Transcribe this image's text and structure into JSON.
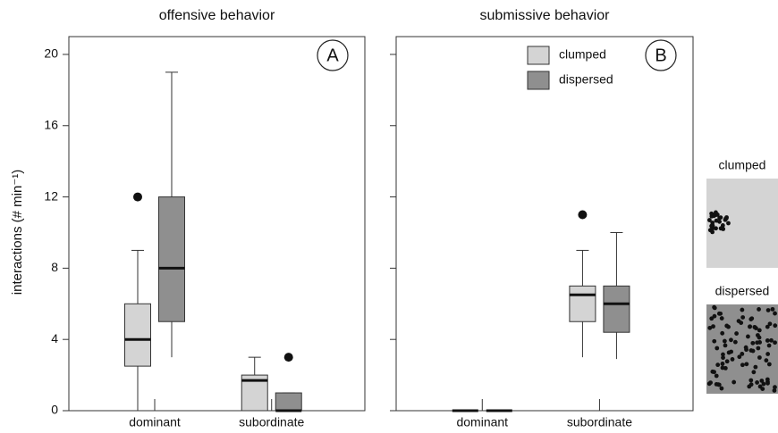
{
  "chart_data": [
    {
      "type": "box",
      "title": "offensive behavior",
      "panel_label": "A",
      "ylabel": "interactions (# min⁻¹)",
      "categories": [
        "dominant",
        "subordinate"
      ],
      "series": [
        {
          "color": "#d4d4d4",
          "min": [
            0,
            0
          ],
          "q1": [
            2.5,
            0
          ],
          "median": [
            4,
            1.7
          ],
          "q3": [
            6,
            2
          ],
          "max": [
            9,
            3
          ],
          "outliers": [
            [
              12
            ],
            []
          ]
        },
        {
          "color": "#8f8f8f",
          "min": [
            3,
            0
          ],
          "q1": [
            5,
            0
          ],
          "median": [
            8,
            0
          ],
          "q3": [
            12,
            1
          ],
          "max": [
            19,
            1
          ],
          "outliers": [
            [],
            [
              3
            ]
          ]
        }
      ],
      "ylim": [
        0,
        21
      ],
      "yticks": [
        0,
        4,
        8,
        12,
        16,
        20
      ],
      "ytick_labels": true
    },
    {
      "type": "box",
      "title": "submissive behavior",
      "panel_label": "B",
      "categories": [
        "dominant",
        "subordinate"
      ],
      "series": [
        {
          "name": "clumped",
          "color": "#d4d4d4",
          "min": [
            0,
            3
          ],
          "q1": [
            0,
            5
          ],
          "median": [
            0,
            6.5
          ],
          "q3": [
            0,
            7
          ],
          "max": [
            0,
            9
          ],
          "outliers": [
            [],
            [
              11
            ]
          ]
        },
        {
          "name": "dispersed",
          "color": "#8f8f8f",
          "min": [
            0,
            2.9
          ],
          "q1": [
            0,
            4.4
          ],
          "median": [
            0,
            6
          ],
          "q3": [
            0,
            7
          ],
          "max": [
            0,
            10
          ],
          "outliers": [
            [],
            []
          ]
        }
      ],
      "ylim": [
        0,
        21
      ],
      "yticks": [
        0,
        4,
        8,
        12,
        16,
        20
      ],
      "ytick_labels": false,
      "legend": "upper right"
    }
  ],
  "illustrations": [
    {
      "label": "clumped"
    },
    {
      "label": "dispersed"
    }
  ]
}
